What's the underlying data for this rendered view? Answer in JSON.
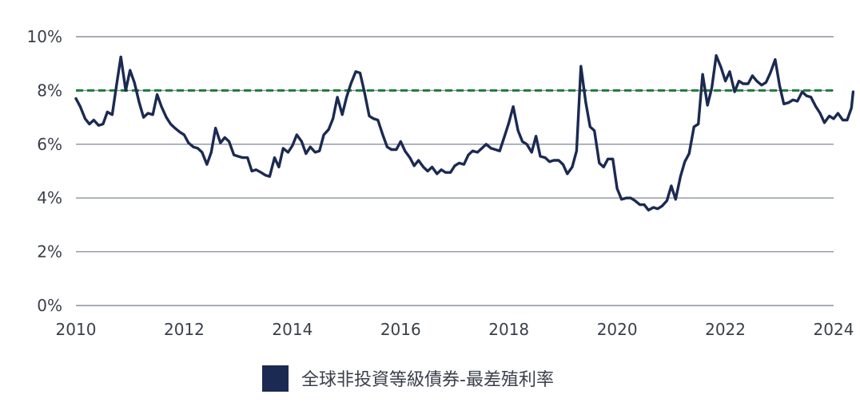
{
  "chart_data": {
    "type": "line",
    "y_tick_labels": [
      "0%",
      "2%",
      "4%",
      "6%",
      "8%",
      "10%"
    ],
    "y_ticks": [
      0,
      2,
      4,
      6,
      8,
      10
    ],
    "x_tick_labels": [
      "2010",
      "2012",
      "2014",
      "2016",
      "2018",
      "2020",
      "2022",
      "2024"
    ],
    "x_ticks": [
      2010,
      2012,
      2014,
      2016,
      2018,
      2020,
      2022,
      2024
    ],
    "xlim": [
      2010,
      2024
    ],
    "ylim": [
      0,
      10
    ],
    "grid": true,
    "legend_position": "bottom",
    "reference_line": {
      "y": 8,
      "style": "dashed",
      "color": "#1e7a3c"
    },
    "series": [
      {
        "name": "全球非投資等級債券-最差殖利率",
        "color": "#1b2a52",
        "points": [
          [
            2010.0,
            7.7
          ],
          [
            2010.08,
            7.4
          ],
          [
            2010.17,
            6.95
          ],
          [
            2010.25,
            6.75
          ],
          [
            2010.33,
            6.9
          ],
          [
            2010.42,
            6.7
          ],
          [
            2010.5,
            6.75
          ],
          [
            2010.58,
            7.2
          ],
          [
            2010.67,
            7.1
          ],
          [
            2010.75,
            8.2
          ],
          [
            2010.83,
            9.25
          ],
          [
            2010.92,
            8.0
          ],
          [
            2011.0,
            8.75
          ],
          [
            2011.08,
            8.3
          ],
          [
            2011.17,
            7.55
          ],
          [
            2011.25,
            7.0
          ],
          [
            2011.33,
            7.15
          ],
          [
            2011.42,
            7.1
          ],
          [
            2011.5,
            7.85
          ],
          [
            2011.58,
            7.4
          ],
          [
            2011.67,
            7.0
          ],
          [
            2011.75,
            6.75
          ],
          [
            2011.83,
            6.6
          ],
          [
            2011.92,
            6.45
          ],
          [
            2012.0,
            6.35
          ],
          [
            2012.08,
            6.05
          ],
          [
            2012.17,
            5.9
          ],
          [
            2012.25,
            5.85
          ],
          [
            2012.33,
            5.7
          ],
          [
            2012.42,
            5.25
          ],
          [
            2012.5,
            5.7
          ],
          [
            2012.58,
            6.6
          ],
          [
            2012.67,
            6.05
          ],
          [
            2012.75,
            6.25
          ],
          [
            2012.83,
            6.1
          ],
          [
            2012.92,
            5.6
          ],
          [
            2013.0,
            5.55
          ],
          [
            2013.08,
            5.5
          ],
          [
            2013.17,
            5.5
          ],
          [
            2013.25,
            5.0
          ],
          [
            2013.33,
            5.05
          ],
          [
            2013.42,
            4.95
          ],
          [
            2013.5,
            4.85
          ],
          [
            2013.58,
            4.8
          ],
          [
            2013.67,
            5.5
          ],
          [
            2013.75,
            5.15
          ],
          [
            2013.83,
            5.85
          ],
          [
            2013.92,
            5.7
          ],
          [
            2014.0,
            5.95
          ],
          [
            2014.08,
            6.35
          ],
          [
            2014.17,
            6.1
          ],
          [
            2014.25,
            5.65
          ],
          [
            2014.33,
            5.9
          ],
          [
            2014.42,
            5.7
          ],
          [
            2014.5,
            5.75
          ],
          [
            2014.58,
            6.35
          ],
          [
            2014.67,
            6.55
          ],
          [
            2014.75,
            6.95
          ],
          [
            2014.83,
            7.75
          ],
          [
            2014.92,
            7.1
          ],
          [
            2015.0,
            7.75
          ],
          [
            2015.08,
            8.25
          ],
          [
            2015.17,
            8.7
          ],
          [
            2015.25,
            8.65
          ],
          [
            2015.33,
            7.95
          ],
          [
            2015.42,
            7.05
          ],
          [
            2015.5,
            6.95
          ],
          [
            2015.58,
            6.9
          ],
          [
            2015.67,
            6.35
          ],
          [
            2015.75,
            5.9
          ],
          [
            2015.83,
            5.8
          ],
          [
            2015.92,
            5.8
          ],
          [
            2016.0,
            6.1
          ],
          [
            2016.08,
            5.75
          ],
          [
            2016.17,
            5.5
          ],
          [
            2016.25,
            5.2
          ],
          [
            2016.33,
            5.4
          ],
          [
            2016.42,
            5.15
          ],
          [
            2016.5,
            5.0
          ],
          [
            2016.58,
            5.15
          ],
          [
            2016.67,
            4.9
          ],
          [
            2016.75,
            5.05
          ],
          [
            2016.83,
            4.95
          ],
          [
            2016.92,
            4.95
          ],
          [
            2017.0,
            5.2
          ],
          [
            2017.08,
            5.3
          ],
          [
            2017.17,
            5.25
          ],
          [
            2017.25,
            5.6
          ],
          [
            2017.33,
            5.75
          ],
          [
            2017.42,
            5.7
          ],
          [
            2017.5,
            5.85
          ],
          [
            2017.58,
            6.0
          ],
          [
            2017.67,
            5.85
          ],
          [
            2017.75,
            5.8
          ],
          [
            2017.83,
            5.75
          ],
          [
            2017.92,
            6.3
          ],
          [
            2018.0,
            6.8
          ],
          [
            2018.08,
            7.4
          ],
          [
            2018.17,
            6.5
          ],
          [
            2018.25,
            6.1
          ],
          [
            2018.33,
            6.0
          ],
          [
            2018.42,
            5.7
          ],
          [
            2018.5,
            6.3
          ],
          [
            2018.58,
            5.55
          ],
          [
            2018.67,
            5.5
          ],
          [
            2018.75,
            5.35
          ],
          [
            2018.83,
            5.4
          ],
          [
            2018.92,
            5.4
          ],
          [
            2019.0,
            5.25
          ],
          [
            2019.08,
            4.9
          ],
          [
            2019.17,
            5.15
          ],
          [
            2019.25,
            5.75
          ],
          [
            2019.33,
            8.9
          ],
          [
            2019.42,
            7.55
          ],
          [
            2019.5,
            6.65
          ],
          [
            2019.58,
            6.5
          ],
          [
            2019.67,
            5.3
          ],
          [
            2019.75,
            5.15
          ],
          [
            2019.83,
            5.45
          ],
          [
            2019.92,
            5.45
          ],
          [
            2020.0,
            4.35
          ],
          [
            2020.08,
            3.95
          ],
          [
            2020.17,
            4.0
          ],
          [
            2020.25,
            4.0
          ],
          [
            2020.33,
            3.9
          ],
          [
            2020.42,
            3.75
          ],
          [
            2020.5,
            3.75
          ],
          [
            2020.58,
            3.55
          ],
          [
            2020.67,
            3.65
          ],
          [
            2020.75,
            3.6
          ],
          [
            2020.83,
            3.7
          ],
          [
            2020.92,
            3.9
          ],
          [
            2021.0,
            4.45
          ],
          [
            2021.08,
            3.95
          ],
          [
            2021.17,
            4.8
          ],
          [
            2021.25,
            5.35
          ],
          [
            2021.33,
            5.65
          ],
          [
            2021.42,
            6.65
          ],
          [
            2021.5,
            6.75
          ],
          [
            2021.58,
            8.6
          ],
          [
            2021.67,
            7.45
          ],
          [
            2021.75,
            8.1
          ],
          [
            2021.83,
            9.3
          ],
          [
            2021.92,
            8.85
          ],
          [
            2022.0,
            8.35
          ],
          [
            2022.08,
            8.7
          ],
          [
            2022.17,
            7.95
          ],
          [
            2022.25,
            8.35
          ],
          [
            2022.33,
            8.25
          ],
          [
            2022.42,
            8.25
          ],
          [
            2022.5,
            8.55
          ],
          [
            2022.58,
            8.35
          ],
          [
            2022.67,
            8.2
          ],
          [
            2022.75,
            8.3
          ],
          [
            2022.83,
            8.65
          ],
          [
            2022.92,
            9.15
          ],
          [
            2023.0,
            8.2
          ],
          [
            2023.08,
            7.5
          ],
          [
            2023.17,
            7.55
          ],
          [
            2023.25,
            7.65
          ],
          [
            2023.33,
            7.6
          ],
          [
            2023.42,
            7.95
          ],
          [
            2023.5,
            7.8
          ],
          [
            2023.58,
            7.75
          ],
          [
            2023.67,
            7.4
          ],
          [
            2023.75,
            7.15
          ],
          [
            2023.83,
            6.8
          ],
          [
            2023.92,
            7.05
          ],
          [
            2024.0,
            6.95
          ],
          [
            2024.08,
            7.15
          ],
          [
            2024.17,
            6.9
          ],
          [
            2024.25,
            6.9
          ],
          [
            2024.33,
            7.35
          ],
          [
            2024.36,
            7.95
          ]
        ]
      }
    ]
  }
}
